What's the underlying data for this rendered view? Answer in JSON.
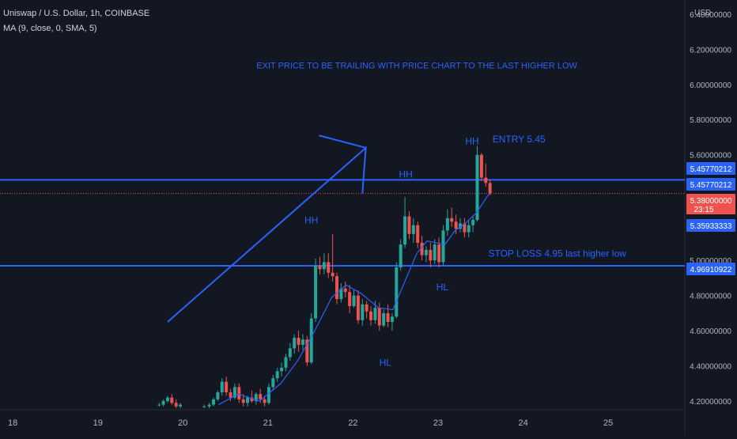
{
  "header": {
    "symbol_line": "Uniswap / U.S. Dollar, 1h, COINBASE",
    "indicator_line": "MA (9, close, 0, SMA, 5)"
  },
  "colors": {
    "background": "#131722",
    "up": "#26a69a",
    "down": "#ef5350",
    "annotation": "#2962ff",
    "ma": "#2962ff",
    "text": "#d1d4dc",
    "axis_text": "#b2b5be",
    "price_dotted": "#ef5350"
  },
  "chart_data": {
    "type": "candlestick",
    "title": "Uniswap / U.S. Dollar, 1h, COINBASE",
    "currency_label": "USD",
    "xlim": [
      17.85,
      25.9
    ],
    "ylim": [
      4.16,
      6.48
    ],
    "grid": false,
    "x_ticks": [
      {
        "value": 18,
        "label": "18"
      },
      {
        "value": 19,
        "label": "19"
      },
      {
        "value": 20,
        "label": "20"
      },
      {
        "value": 21,
        "label": "21"
      },
      {
        "value": 22,
        "label": "22"
      },
      {
        "value": 23,
        "label": "23"
      },
      {
        "value": 24,
        "label": "24"
      },
      {
        "value": 25,
        "label": "25"
      }
    ],
    "y_ticks": [
      {
        "value": 4.2,
        "label": "4.20000000"
      },
      {
        "value": 4.4,
        "label": "4.40000000"
      },
      {
        "value": 4.6,
        "label": "4.60000000"
      },
      {
        "value": 4.8,
        "label": "4.80000000"
      },
      {
        "value": 5.0,
        "label": "5.00000000"
      },
      {
        "value": 5.6,
        "label": "5.60000000"
      },
      {
        "value": 5.8,
        "label": "5.80000000"
      },
      {
        "value": 6.0,
        "label": "6.00000000"
      },
      {
        "value": 6.2,
        "label": "6.20000000"
      },
      {
        "value": 6.4,
        "label": "6.40000000"
      }
    ],
    "price_labels": [
      {
        "value": 5.45770212,
        "label": "5.45770212",
        "style": "blue-outline"
      },
      {
        "value": 5.45770212,
        "label": "5.45770212",
        "style": "blue"
      },
      {
        "value": 5.38,
        "label": "5.38000000",
        "sublabel": "23:15",
        "style": "red"
      },
      {
        "value": 5.35933333,
        "label": "5.35933333",
        "style": "blue"
      },
      {
        "value": 4.96910922,
        "label": "4.96910922",
        "style": "blue"
      }
    ],
    "horizontal_lines": [
      {
        "value": 5.45770212,
        "label": "ENTRY 5.45"
      },
      {
        "value": 4.96910922,
        "label": "STOP LOSS 4.95 last higher low"
      }
    ],
    "current_price": 5.38,
    "annotations": [
      {
        "text": "EXIT PRICE TO BE TRAILING WITH PRICE CHART TO THE LAST HIGHER LOW",
        "x": 22.75,
        "y": 6.09
      },
      {
        "text": "HH",
        "x": 21.51,
        "y": 5.21
      },
      {
        "text": "HH",
        "x": 22.62,
        "y": 5.47
      },
      {
        "text": "HH",
        "x": 23.4,
        "y": 5.66
      },
      {
        "text": "HL",
        "x": 22.38,
        "y": 4.4
      },
      {
        "text": "HL",
        "x": 23.05,
        "y": 4.83
      },
      {
        "text": "ENTRY 5.45",
        "x": 23.95,
        "y": 5.67
      },
      {
        "text": "STOP LOSS 4.95 last higher low",
        "x": 24.4,
        "y": 5.02
      }
    ],
    "arrow": {
      "points": [
        [
          19.82,
          4.65
        ],
        [
          22.15,
          5.64
        ],
        [
          22.11,
          5.38
        ]
      ],
      "head": [
        [
          21.6,
          5.71
        ],
        [
          22.15,
          5.64
        ]
      ]
    },
    "ma": {
      "name": "MA (9, close, 0, SMA, 5)",
      "points": [
        [
          20.42,
          4.18
        ],
        [
          20.65,
          4.24
        ],
        [
          20.9,
          4.2
        ],
        [
          21.15,
          4.3
        ],
        [
          21.35,
          4.43
        ],
        [
          21.55,
          4.6
        ],
        [
          21.75,
          4.79
        ],
        [
          21.92,
          4.86
        ],
        [
          22.1,
          4.81
        ],
        [
          22.3,
          4.73
        ],
        [
          22.47,
          4.72
        ],
        [
          22.6,
          4.87
        ],
        [
          22.75,
          5.04
        ],
        [
          22.87,
          5.11
        ],
        [
          22.98,
          5.1
        ],
        [
          23.08,
          5.09
        ],
        [
          23.2,
          5.17
        ],
        [
          23.32,
          5.21
        ],
        [
          23.45,
          5.27
        ],
        [
          23.6,
          5.38
        ]
      ]
    },
    "candles": [
      [
        19.72,
        4.18,
        4.19,
        4.17,
        4.18
      ],
      [
        19.77,
        4.18,
        4.21,
        4.17,
        4.2
      ],
      [
        19.82,
        4.2,
        4.23,
        4.19,
        4.22
      ],
      [
        19.87,
        4.22,
        4.24,
        4.18,
        4.19
      ],
      [
        19.92,
        4.19,
        4.21,
        4.16,
        4.17
      ],
      [
        19.97,
        4.17,
        4.19,
        4.16,
        4.18
      ],
      [
        20.25,
        4.17,
        4.18,
        4.16,
        4.17
      ],
      [
        20.31,
        4.17,
        4.19,
        4.16,
        4.18
      ],
      [
        20.36,
        4.18,
        4.22,
        4.17,
        4.21
      ],
      [
        20.41,
        4.21,
        4.26,
        4.2,
        4.25
      ],
      [
        20.46,
        4.25,
        4.33,
        4.23,
        4.31
      ],
      [
        20.51,
        4.31,
        4.34,
        4.23,
        4.25
      ],
      [
        20.56,
        4.25,
        4.27,
        4.2,
        4.22
      ],
      [
        20.61,
        4.22,
        4.3,
        4.21,
        4.28
      ],
      [
        20.66,
        4.28,
        4.3,
        4.19,
        4.21
      ],
      [
        20.71,
        4.21,
        4.24,
        4.17,
        4.19
      ],
      [
        20.76,
        4.19,
        4.23,
        4.17,
        4.22
      ],
      [
        20.81,
        4.22,
        4.26,
        4.19,
        4.2
      ],
      [
        20.86,
        4.2,
        4.25,
        4.18,
        4.24
      ],
      [
        20.91,
        4.24,
        4.27,
        4.19,
        4.21
      ],
      [
        20.96,
        4.21,
        4.23,
        4.17,
        4.19
      ],
      [
        21.01,
        4.19,
        4.3,
        4.18,
        4.28
      ],
      [
        21.06,
        4.28,
        4.35,
        4.26,
        4.33
      ],
      [
        21.11,
        4.33,
        4.39,
        4.31,
        4.37
      ],
      [
        21.16,
        4.37,
        4.42,
        4.34,
        4.39
      ],
      [
        21.21,
        4.39,
        4.47,
        4.37,
        4.45
      ],
      [
        21.26,
        4.45,
        4.53,
        4.43,
        4.5
      ],
      [
        21.31,
        4.5,
        4.58,
        4.47,
        4.56
      ],
      [
        21.36,
        4.56,
        4.6,
        4.48,
        4.52
      ],
      [
        21.41,
        4.52,
        4.58,
        4.49,
        4.55
      ],
      [
        21.46,
        4.55,
        4.57,
        4.4,
        4.42
      ],
      [
        21.51,
        4.42,
        4.7,
        4.41,
        4.67
      ],
      [
        21.56,
        4.67,
        5.01,
        4.65,
        4.97
      ],
      [
        21.61,
        4.97,
        5.02,
        4.92,
        4.95
      ],
      [
        21.66,
        4.95,
        5.04,
        4.92,
        4.99
      ],
      [
        21.71,
        4.99,
        5.04,
        4.9,
        4.93
      ],
      [
        21.76,
        4.93,
        5.15,
        4.88,
        4.91
      ],
      [
        21.81,
        4.91,
        4.93,
        4.75,
        4.78
      ],
      [
        21.86,
        4.78,
        4.87,
        4.76,
        4.84
      ],
      [
        21.91,
        4.84,
        4.88,
        4.79,
        4.82
      ],
      [
        21.96,
        4.82,
        4.86,
        4.7,
        4.74
      ],
      [
        22.01,
        4.74,
        4.83,
        4.73,
        4.8
      ],
      [
        22.06,
        4.8,
        4.83,
        4.64,
        4.66
      ],
      [
        22.11,
        4.66,
        4.78,
        4.63,
        4.75
      ],
      [
        22.16,
        4.75,
        4.77,
        4.67,
        4.71
      ],
      [
        22.21,
        4.71,
        4.74,
        4.63,
        4.66
      ],
      [
        22.26,
        4.66,
        4.77,
        4.64,
        4.73
      ],
      [
        22.31,
        4.73,
        4.76,
        4.6,
        4.63
      ],
      [
        22.36,
        4.63,
        4.72,
        4.62,
        4.7
      ],
      [
        22.41,
        4.7,
        4.75,
        4.62,
        4.65
      ],
      [
        22.46,
        4.65,
        4.7,
        4.6,
        4.68
      ],
      [
        22.51,
        4.68,
        4.99,
        4.67,
        4.96
      ],
      [
        22.56,
        4.96,
        5.12,
        4.94,
        5.09
      ],
      [
        22.61,
        5.09,
        5.36,
        5.07,
        5.25
      ],
      [
        22.66,
        5.25,
        5.28,
        5.12,
        5.15
      ],
      [
        22.71,
        5.15,
        5.24,
        5.1,
        5.2
      ],
      [
        22.76,
        5.2,
        5.22,
        5.07,
        5.1
      ],
      [
        22.81,
        5.1,
        5.14,
        5.0,
        5.03
      ],
      [
        22.86,
        5.03,
        5.08,
        4.99,
        5.06
      ],
      [
        22.91,
        5.06,
        5.1,
        4.96,
        5.0
      ],
      [
        22.96,
        5.0,
        5.12,
        4.98,
        5.09
      ],
      [
        23.01,
        5.09,
        5.13,
        4.96,
        4.99
      ],
      [
        23.06,
        4.99,
        5.2,
        4.97,
        5.17
      ],
      [
        23.11,
        5.17,
        5.29,
        5.14,
        5.24
      ],
      [
        23.16,
        5.24,
        5.3,
        5.19,
        5.22
      ],
      [
        23.21,
        5.22,
        5.26,
        5.15,
        5.18
      ],
      [
        23.26,
        5.18,
        5.24,
        5.16,
        5.21
      ],
      [
        23.31,
        5.21,
        5.24,
        5.13,
        5.16
      ],
      [
        23.36,
        5.16,
        5.23,
        5.13,
        5.2
      ],
      [
        23.41,
        5.2,
        5.25,
        5.16,
        5.23
      ],
      [
        23.46,
        5.23,
        5.65,
        5.22,
        5.6
      ],
      [
        23.51,
        5.6,
        5.61,
        5.45,
        5.47
      ],
      [
        23.56,
        5.47,
        5.55,
        5.42,
        5.44
      ],
      [
        23.61,
        5.44,
        5.46,
        5.37,
        5.38
      ]
    ]
  }
}
